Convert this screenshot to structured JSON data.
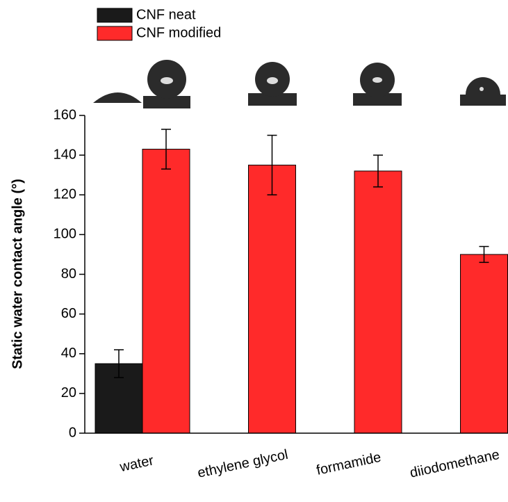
{
  "chart_data": {
    "type": "bar",
    "y_label": "Static water contact angle (°)",
    "categories": [
      "water",
      "ethylene glycol",
      "formamide",
      "diiodomethane"
    ],
    "series": [
      {
        "name": "CNF neat",
        "color": "#1a1a1a",
        "values": [
          35,
          null,
          null,
          null
        ],
        "errors": [
          7,
          null,
          null,
          null
        ]
      },
      {
        "name": "CNF modified",
        "color": "#ff2a2a",
        "values": [
          143,
          135,
          132,
          90
        ],
        "errors": [
          10,
          15,
          8,
          4
        ]
      }
    ],
    "ylim": [
      0,
      160
    ],
    "yticks": [
      0,
      20,
      40,
      60,
      80,
      100,
      120,
      140,
      160
    ]
  }
}
